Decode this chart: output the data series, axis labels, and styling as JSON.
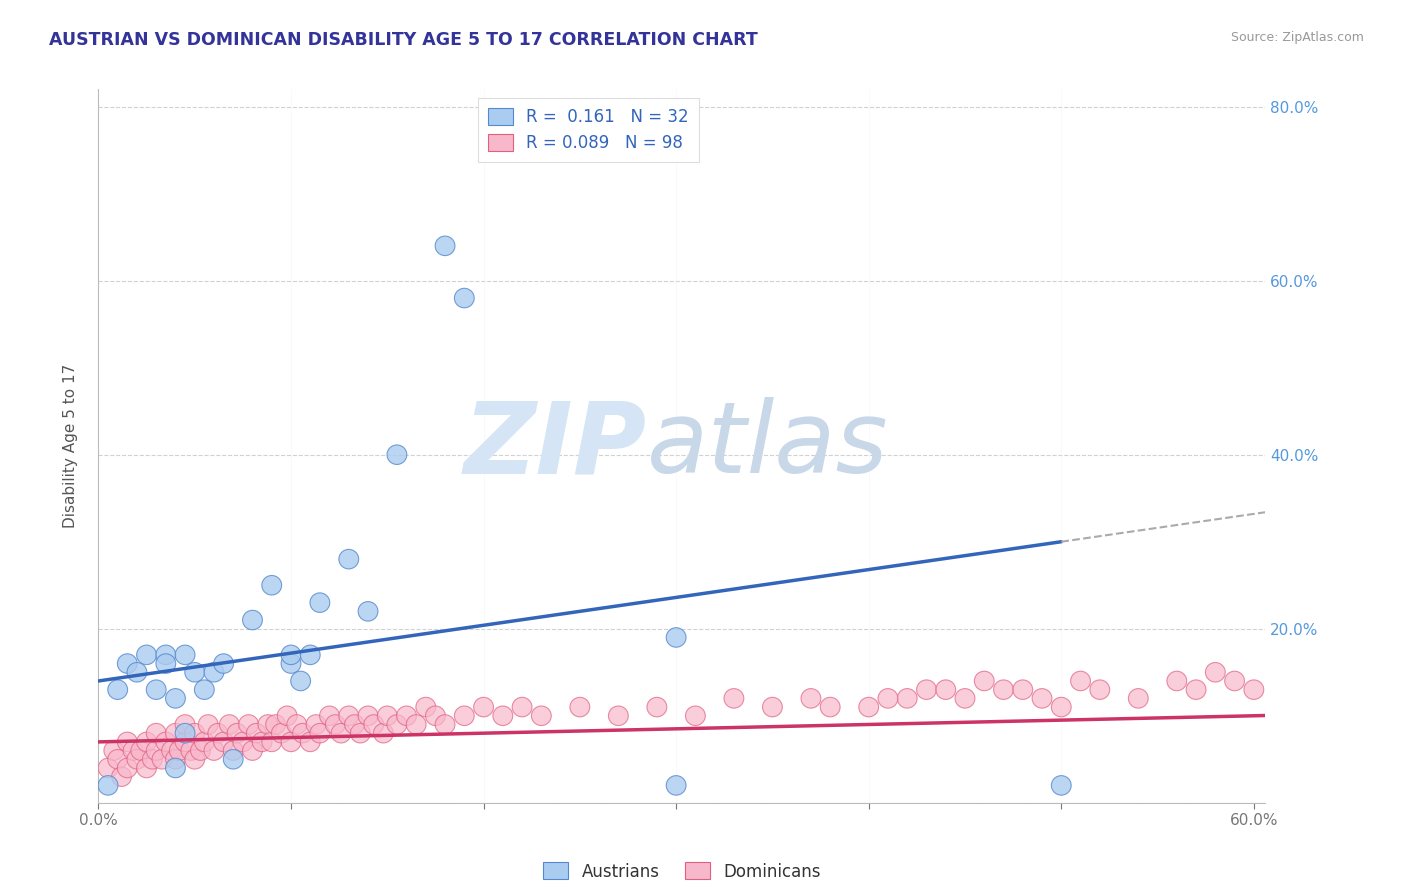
{
  "title": "AUSTRIAN VS DOMINICAN DISABILITY AGE 5 TO 17 CORRELATION CHART",
  "source_text": "Source: ZipAtlas.com",
  "xmin": 0.0,
  "xmax": 0.6,
  "ymin": 0.0,
  "ymax": 0.8,
  "ylabel": "Disability Age 5 to 17",
  "austrian_color": "#aaccf0",
  "dominican_color": "#f8b8cc",
  "austrian_edge_color": "#5588cc",
  "dominican_edge_color": "#e06080",
  "austrian_line_color": "#3366bb",
  "dominican_line_color": "#cc3366",
  "dash_color": "#aaaaaa",
  "legend_text_color": "#3366bb",
  "ytick_color": "#5599dd",
  "xtick_color": "#555555",
  "title_color": "#333399",
  "source_color": "#999999",
  "background_color": "#ffffff",
  "watermark_zip_color": "#d5e5f5",
  "watermark_atlas_color": "#c8d8e8",
  "austrian_R": 0.161,
  "austrian_N": 32,
  "dominican_R": 0.089,
  "dominican_N": 98,
  "austrian_x": [
    0.005,
    0.01,
    0.015,
    0.02,
    0.025,
    0.03,
    0.035,
    0.035,
    0.04,
    0.04,
    0.045,
    0.045,
    0.05,
    0.055,
    0.06,
    0.065,
    0.07,
    0.08,
    0.09,
    0.1,
    0.1,
    0.105,
    0.11,
    0.115,
    0.13,
    0.14,
    0.155,
    0.18,
    0.19,
    0.3,
    0.3,
    0.5
  ],
  "austrian_y": [
    0.02,
    0.13,
    0.16,
    0.15,
    0.17,
    0.13,
    0.17,
    0.16,
    0.12,
    0.04,
    0.17,
    0.08,
    0.15,
    0.13,
    0.15,
    0.16,
    0.05,
    0.21,
    0.25,
    0.16,
    0.17,
    0.14,
    0.17,
    0.23,
    0.28,
    0.22,
    0.4,
    0.64,
    0.58,
    0.19,
    0.02,
    0.02
  ],
  "dominican_x": [
    0.005,
    0.008,
    0.01,
    0.012,
    0.015,
    0.015,
    0.018,
    0.02,
    0.022,
    0.025,
    0.025,
    0.028,
    0.03,
    0.03,
    0.033,
    0.035,
    0.038,
    0.04,
    0.04,
    0.042,
    0.045,
    0.045,
    0.048,
    0.05,
    0.05,
    0.053,
    0.055,
    0.057,
    0.06,
    0.062,
    0.065,
    0.068,
    0.07,
    0.072,
    0.075,
    0.078,
    0.08,
    0.082,
    0.085,
    0.088,
    0.09,
    0.092,
    0.095,
    0.098,
    0.1,
    0.103,
    0.106,
    0.11,
    0.113,
    0.115,
    0.12,
    0.123,
    0.126,
    0.13,
    0.133,
    0.136,
    0.14,
    0.143,
    0.148,
    0.15,
    0.155,
    0.16,
    0.165,
    0.17,
    0.175,
    0.18,
    0.19,
    0.2,
    0.21,
    0.22,
    0.23,
    0.25,
    0.27,
    0.29,
    0.31,
    0.33,
    0.35,
    0.37,
    0.4,
    0.42,
    0.43,
    0.45,
    0.47,
    0.49,
    0.5,
    0.52,
    0.54,
    0.56,
    0.57,
    0.58,
    0.59,
    0.6,
    0.38,
    0.41,
    0.44,
    0.46,
    0.48,
    0.51
  ],
  "dominican_y": [
    0.04,
    0.06,
    0.05,
    0.03,
    0.04,
    0.07,
    0.06,
    0.05,
    0.06,
    0.04,
    0.07,
    0.05,
    0.06,
    0.08,
    0.05,
    0.07,
    0.06,
    0.05,
    0.08,
    0.06,
    0.07,
    0.09,
    0.06,
    0.05,
    0.08,
    0.06,
    0.07,
    0.09,
    0.06,
    0.08,
    0.07,
    0.09,
    0.06,
    0.08,
    0.07,
    0.09,
    0.06,
    0.08,
    0.07,
    0.09,
    0.07,
    0.09,
    0.08,
    0.1,
    0.07,
    0.09,
    0.08,
    0.07,
    0.09,
    0.08,
    0.1,
    0.09,
    0.08,
    0.1,
    0.09,
    0.08,
    0.1,
    0.09,
    0.08,
    0.1,
    0.09,
    0.1,
    0.09,
    0.11,
    0.1,
    0.09,
    0.1,
    0.11,
    0.1,
    0.11,
    0.1,
    0.11,
    0.1,
    0.11,
    0.1,
    0.12,
    0.11,
    0.12,
    0.11,
    0.12,
    0.13,
    0.12,
    0.13,
    0.12,
    0.11,
    0.13,
    0.12,
    0.14,
    0.13,
    0.15,
    0.14,
    0.13,
    0.11,
    0.12,
    0.13,
    0.14,
    0.13,
    0.14
  ]
}
